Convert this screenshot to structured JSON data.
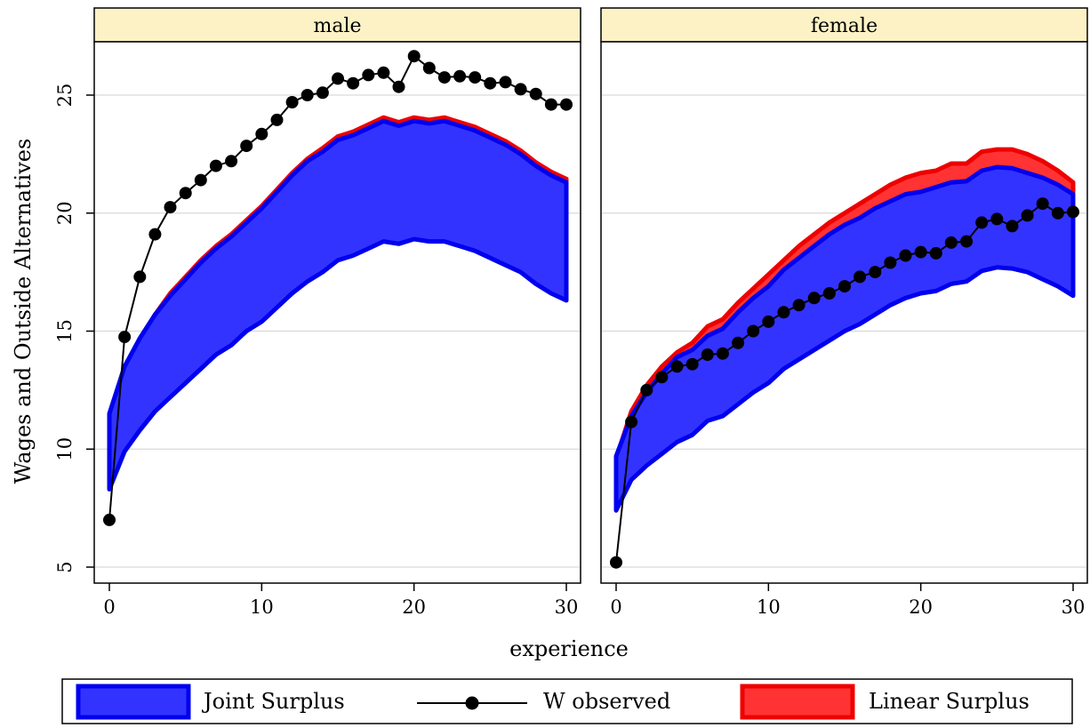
{
  "chart_data": {
    "type": "area",
    "xlabel": "experience",
    "ylabel": "Wages and Outside Alternatives",
    "xlim": [
      0,
      30
    ],
    "ylim": [
      5,
      27
    ],
    "x_ticks": [
      0,
      10,
      20,
      30
    ],
    "y_ticks": [
      5,
      10,
      15,
      20,
      25
    ],
    "grid": "horizontal",
    "legend_position": "bottom",
    "colors": {
      "joint_fill": "#3333ff",
      "joint_edge": "#0000ee",
      "linear_fill": "#ff3333",
      "linear_edge": "#ee0000",
      "observed": "#000000",
      "strip": "#fdf2c5",
      "grid": "#d9d9d9"
    },
    "legend": [
      {
        "key": "joint",
        "label": "Joint Surplus",
        "symbol": "band"
      },
      {
        "key": "observed",
        "label": "W observed",
        "symbol": "line-marker"
      },
      {
        "key": "linear",
        "label": "Linear Surplus",
        "symbol": "band"
      }
    ],
    "panels": [
      {
        "title": "male",
        "x": [
          0,
          1,
          2,
          3,
          4,
          5,
          6,
          7,
          8,
          9,
          10,
          11,
          12,
          13,
          14,
          15,
          16,
          17,
          18,
          19,
          20,
          21,
          22,
          23,
          24,
          25,
          26,
          27,
          28,
          29,
          30
        ],
        "w_observed": [
          7.0,
          14.75,
          17.3,
          19.1,
          20.25,
          20.85,
          21.4,
          22.0,
          22.2,
          22.85,
          23.35,
          23.95,
          24.7,
          25.0,
          25.1,
          25.7,
          25.5,
          25.85,
          25.95,
          25.35,
          26.65,
          26.15,
          25.75,
          25.8,
          25.75,
          25.5,
          25.55,
          25.25,
          25.05,
          24.6,
          24.6
        ],
        "joint_upper": [
          11.5,
          13.5,
          14.7,
          15.7,
          16.5,
          17.2,
          17.9,
          18.5,
          19.0,
          19.6,
          20.2,
          20.9,
          21.6,
          22.2,
          22.6,
          23.1,
          23.3,
          23.6,
          23.9,
          23.7,
          23.9,
          23.8,
          23.9,
          23.7,
          23.5,
          23.2,
          22.9,
          22.5,
          22.0,
          21.6,
          21.3
        ],
        "joint_lower": [
          8.3,
          9.9,
          10.8,
          11.6,
          12.2,
          12.8,
          13.4,
          14.0,
          14.4,
          15.0,
          15.4,
          16.0,
          16.6,
          17.1,
          17.5,
          18.0,
          18.2,
          18.5,
          18.8,
          18.7,
          18.9,
          18.8,
          18.8,
          18.6,
          18.4,
          18.1,
          17.8,
          17.5,
          17.0,
          16.6,
          16.3
        ],
        "linear_upper": [
          11.1,
          13.3,
          14.6,
          15.7,
          16.6,
          17.3,
          18.0,
          18.6,
          19.1,
          19.7,
          20.3,
          21.0,
          21.7,
          22.3,
          22.75,
          23.25,
          23.45,
          23.75,
          24.05,
          23.85,
          24.05,
          23.95,
          24.05,
          23.85,
          23.65,
          23.35,
          23.05,
          22.65,
          22.15,
          21.75,
          21.45
        ],
        "linear_lower": [
          11.0,
          13.2,
          14.5,
          15.6,
          16.5,
          17.2,
          17.9,
          18.5,
          19.0,
          19.6,
          20.2,
          20.9,
          21.6,
          22.2,
          22.6,
          23.1,
          23.3,
          23.6,
          23.9,
          23.7,
          23.9,
          23.8,
          23.9,
          23.7,
          23.5,
          23.2,
          22.9,
          22.5,
          22.0,
          21.6,
          21.3
        ]
      },
      {
        "title": "female",
        "x": [
          0,
          1,
          2,
          3,
          4,
          5,
          6,
          7,
          8,
          9,
          10,
          11,
          12,
          13,
          14,
          15,
          16,
          17,
          18,
          19,
          20,
          21,
          22,
          23,
          24,
          25,
          26,
          27,
          28,
          29,
          30
        ],
        "w_observed": [
          5.2,
          11.15,
          12.5,
          13.05,
          13.5,
          13.6,
          14.0,
          14.05,
          14.5,
          15.0,
          15.4,
          15.8,
          16.1,
          16.4,
          16.6,
          16.9,
          17.3,
          17.5,
          17.9,
          18.2,
          18.35,
          18.3,
          18.75,
          18.8,
          19.6,
          19.75,
          19.45,
          19.9,
          20.4,
          20.0,
          20.05
        ],
        "joint_upper": [
          9.7,
          11.4,
          12.4,
          13.2,
          13.9,
          14.2,
          14.8,
          15.1,
          15.8,
          16.4,
          16.9,
          17.6,
          18.1,
          18.6,
          19.1,
          19.5,
          19.8,
          20.2,
          20.5,
          20.8,
          20.9,
          21.1,
          21.3,
          21.35,
          21.8,
          21.95,
          21.9,
          21.7,
          21.5,
          21.2,
          20.8
        ],
        "joint_lower": [
          7.4,
          8.7,
          9.3,
          9.8,
          10.3,
          10.6,
          11.2,
          11.4,
          11.9,
          12.4,
          12.8,
          13.4,
          13.8,
          14.2,
          14.6,
          15.0,
          15.3,
          15.7,
          16.1,
          16.4,
          16.6,
          16.7,
          17.0,
          17.1,
          17.55,
          17.7,
          17.65,
          17.5,
          17.2,
          16.9,
          16.5
        ],
        "linear_upper": [
          9.6,
          11.6,
          12.7,
          13.5,
          14.1,
          14.5,
          15.2,
          15.5,
          16.2,
          16.8,
          17.4,
          18.0,
          18.6,
          19.1,
          19.6,
          20.0,
          20.4,
          20.8,
          21.2,
          21.5,
          21.7,
          21.8,
          22.1,
          22.1,
          22.6,
          22.7,
          22.7,
          22.5,
          22.2,
          21.8,
          21.3
        ],
        "linear_lower": [
          9.4,
          11.3,
          12.3,
          13.1,
          13.8,
          14.1,
          14.7,
          15.0,
          15.7,
          16.3,
          16.8,
          17.4,
          18.0,
          18.5,
          19.0,
          19.4,
          19.7,
          20.1,
          20.4,
          20.7,
          20.8,
          20.9,
          21.2,
          21.2,
          21.7,
          21.8,
          21.7,
          21.5,
          21.3,
          20.9,
          20.5
        ]
      }
    ]
  }
}
